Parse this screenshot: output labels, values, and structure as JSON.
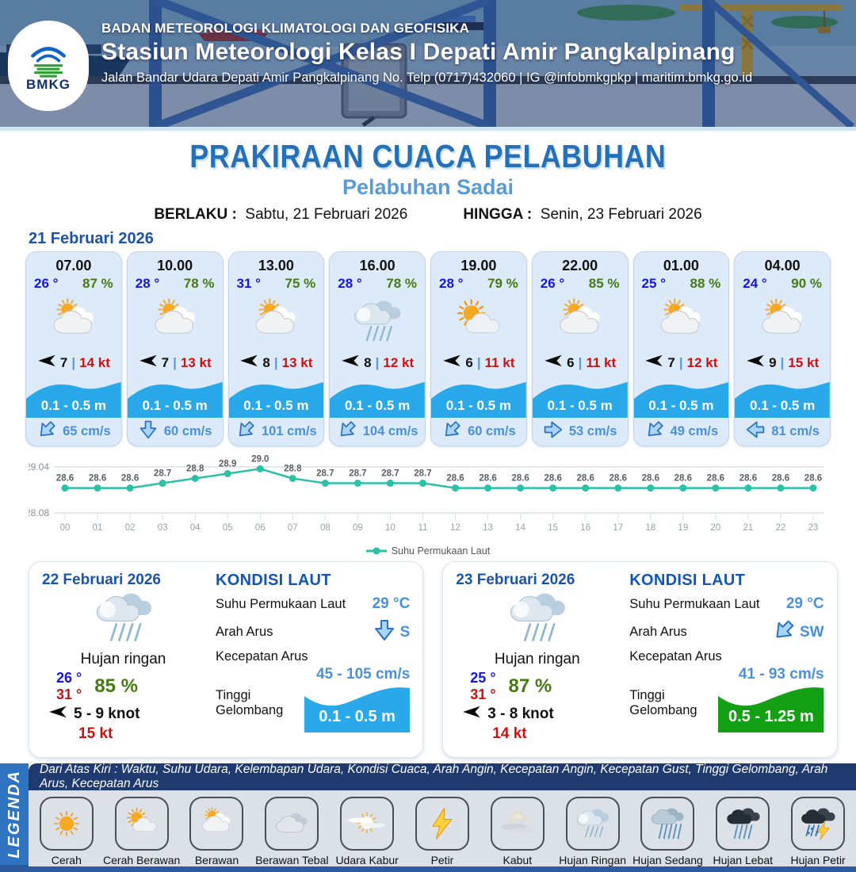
{
  "header": {
    "logo_label": "BMKG",
    "org": "BADAN METEOROLOGI KLIMATOLOGI DAN GEOFISIKA",
    "station": "Stasiun Meteorologi Kelas I Depati Amir Pangkalpinang",
    "address": "Jalan Bandar Udara Depati Amir Pangkalpinang No. Telp (0717)432060 | IG @infobmkgpkp | maritim.bmkg.go.id"
  },
  "title": {
    "main": "PRAKIRAAN CUACA PELABUHAN",
    "subtitle": "Pelabuhan Sadai",
    "valid_label": "BERLAKU :",
    "valid_value": "Sabtu, 21 Februari 2026",
    "until_label": "HINGGA :",
    "until_value": "Senin, 23 Februari 2026"
  },
  "forecast_day1": {
    "date": "21 Februari 2026",
    "cards": [
      {
        "time": "07.00",
        "temp": "26 °",
        "humidity": "87 %",
        "icon": "berawan",
        "wind": "7",
        "gust": "14 kt",
        "wave": "0.1 - 0.5 m",
        "current": "65 cm/s",
        "current_dir": "SW"
      },
      {
        "time": "10.00",
        "temp": "28 °",
        "humidity": "78 %",
        "icon": "berawan",
        "wind": "7",
        "gust": "13 kt",
        "wave": "0.1 - 0.5 m",
        "current": "60 cm/s",
        "current_dir": "S"
      },
      {
        "time": "13.00",
        "temp": "31 °",
        "humidity": "75 %",
        "icon": "berawan",
        "wind": "8",
        "gust": "13 kt",
        "wave": "0.1 - 0.5 m",
        "current": "101 cm/s",
        "current_dir": "SW"
      },
      {
        "time": "16.00",
        "temp": "28 °",
        "humidity": "78 %",
        "icon": "hujan-ringan",
        "wind": "8",
        "gust": "12 kt",
        "wave": "0.1 - 0.5 m",
        "current": "104 cm/s",
        "current_dir": "SW"
      },
      {
        "time": "19.00",
        "temp": "28 °",
        "humidity": "79 %",
        "icon": "cerah-berawan",
        "wind": "6",
        "gust": "11 kt",
        "wave": "0.1 - 0.5 m",
        "current": "60 cm/s",
        "current_dir": "SW"
      },
      {
        "time": "22.00",
        "temp": "26 °",
        "humidity": "85 %",
        "icon": "berawan",
        "wind": "6",
        "gust": "11 kt",
        "wave": "0.1 - 0.5 m",
        "current": "53 cm/s",
        "current_dir": "E"
      },
      {
        "time": "01.00",
        "temp": "25 °",
        "humidity": "88 %",
        "icon": "berawan",
        "wind": "7",
        "gust": "12 kt",
        "wave": "0.1 - 0.5 m",
        "current": "49 cm/s",
        "current_dir": "SW"
      },
      {
        "time": "04.00",
        "temp": "24 °",
        "humidity": "90 %",
        "icon": "berawan",
        "wind": "9",
        "gust": "15 kt",
        "wave": "0.1 - 0.5 m",
        "current": "81 cm/s",
        "current_dir": "W"
      }
    ]
  },
  "chart_data": {
    "type": "line",
    "x": [
      "00",
      "01",
      "02",
      "03",
      "04",
      "05",
      "06",
      "07",
      "08",
      "09",
      "10",
      "11",
      "12",
      "13",
      "14",
      "15",
      "16",
      "17",
      "18",
      "19",
      "20",
      "21",
      "22",
      "23"
    ],
    "values": [
      28.6,
      28.6,
      28.6,
      28.7,
      28.8,
      28.9,
      29.0,
      28.8,
      28.7,
      28.7,
      28.7,
      28.7,
      28.6,
      28.6,
      28.6,
      28.6,
      28.6,
      28.6,
      28.6,
      28.6,
      28.6,
      28.6,
      28.6,
      28.6
    ],
    "series_name": "Suhu Permukaan Laut",
    "legend_label": "Suhu Permukaan Laut",
    "ylim": [
      28.08,
      29.04
    ],
    "line_color": "#2bc0a8",
    "grid": true,
    "legend_position": "bottom"
  },
  "daily": [
    {
      "date": "22 Februari 2026",
      "icon": "hujan-ringan",
      "condition": "Hujan ringan",
      "temp_min": "26 °",
      "temp_max": "31 °",
      "humidity": "85 %",
      "wind": "5 - 9 knot",
      "gust": "15 kt",
      "sea": {
        "heading": "KONDISI LAUT",
        "sst_label": "Suhu Permukaan Laut",
        "sst": "29 °C",
        "current_dir_label": "Arah Arus",
        "current_dir": "S",
        "current_speed_label": "Kecepatan Arus",
        "current_speed": "45 - 105 cm/s",
        "wave_label": "Tinggi Gelombang",
        "wave": "0.1 - 0.5 m",
        "wave_color": "#29a9e9"
      }
    },
    {
      "date": "23 Februari 2026",
      "icon": "hujan-ringan",
      "condition": "Hujan ringan",
      "temp_min": "25 °",
      "temp_max": "31 °",
      "humidity": "87 %",
      "wind": "3 - 8 knot",
      "gust": "14 kt",
      "sea": {
        "heading": "KONDISI LAUT",
        "sst_label": "Suhu Permukaan Laut",
        "sst": "29 °C",
        "current_dir_label": "Arah Arus",
        "current_dir": "SW",
        "current_speed_label": "Kecepatan Arus",
        "current_speed": "41 - 93 cm/s",
        "wave_label": "Tinggi Gelombang",
        "wave": "0.5 - 1.25 m",
        "wave_color": "#14a014"
      }
    }
  ],
  "legend": {
    "bar_label": "LEGENDA",
    "note": "Dari Atas Kiri : Waktu, Suhu Udara, Kelembapan Udara, Kondisi Cuaca, Arah Angin, Kecepatan Angin, Kecepatan Gust, Tinggi Gelombang, Arah Arus, Kecepatan Arus",
    "items": [
      {
        "label": "Cerah",
        "icon": "cerah"
      },
      {
        "label": "Cerah Berawan",
        "icon": "cerah-berawan"
      },
      {
        "label": "Berawan",
        "icon": "berawan"
      },
      {
        "label": "Berawan Tebal",
        "icon": "berawan-tebal"
      },
      {
        "label": "Udara Kabur",
        "icon": "udara-kabur"
      },
      {
        "label": "Petir",
        "icon": "petir"
      },
      {
        "label": "Kabut",
        "icon": "kabut"
      },
      {
        "label": "Hujan Ringan",
        "icon": "hujan-ringan"
      },
      {
        "label": "Hujan Sedang",
        "icon": "hujan-sedang"
      },
      {
        "label": "Hujan Lebat",
        "icon": "hujan-lebat"
      },
      {
        "label": "Hujan Petir",
        "icon": "hujan-petir"
      }
    ]
  },
  "colors": {
    "title_blue": "#2471b9",
    "subtitle_blue": "#5b9bd5",
    "temp_blue": "#1414e8",
    "humidity_green": "#467a12",
    "gust_red": "#cc1111",
    "wave_blue": "#29a9e9",
    "wave_green": "#14a014",
    "chart_teal": "#2bc0a8"
  }
}
